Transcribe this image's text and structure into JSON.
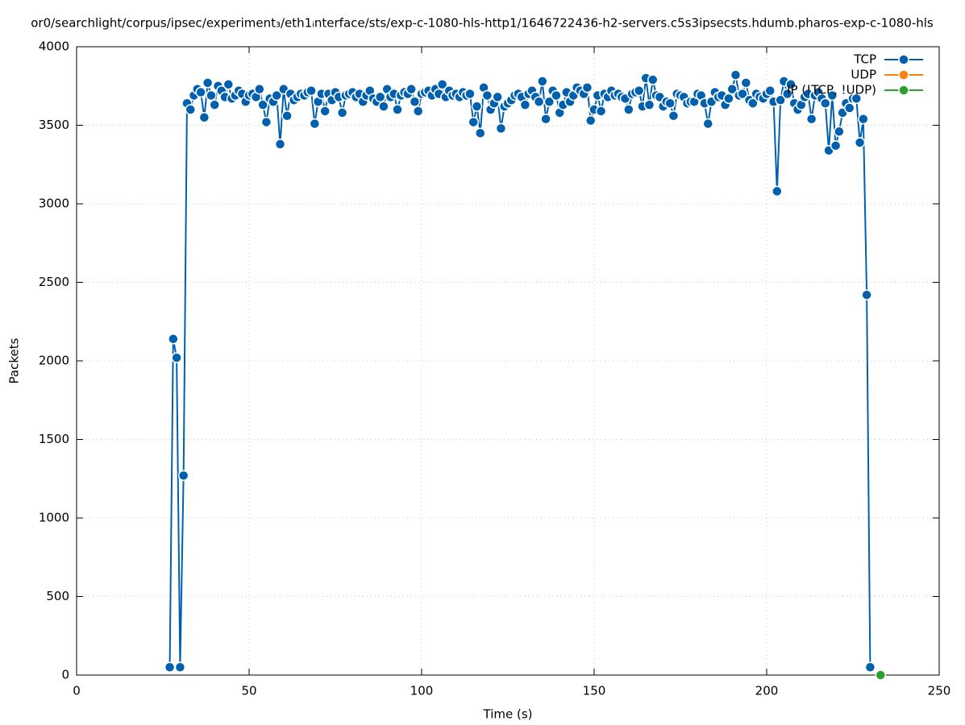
{
  "chart_data": {
    "type": "line",
    "title": "or0/searchlight/corpus/ipsec/experiment₃/eth1ᵢnterface/sts/exp-c-1080-hls-http1/1646722436-h2-servers.c5s3ipsecsts.hdumb.pharos-exp-c-1080-hls",
    "x_label": "Time (s)",
    "y_label": "Packets",
    "xlim": [
      0,
      250
    ],
    "xticks": [
      0,
      50,
      100,
      150,
      200,
      250
    ],
    "ylim": [
      0,
      4000
    ],
    "yticks": [
      0,
      500,
      1000,
      1500,
      2000,
      2500,
      3000,
      3500,
      4000
    ],
    "grid": true,
    "legend": "top-right",
    "series": [
      {
        "name": "TCP",
        "color": "#0060ad",
        "x": [
          27,
          28,
          29,
          30,
          31,
          32,
          33,
          34,
          35,
          36,
          37,
          38,
          39,
          40,
          41,
          42,
          43,
          44,
          45,
          46,
          47,
          48,
          49,
          50,
          51,
          52,
          53,
          54,
          55,
          56,
          57,
          58,
          59,
          60,
          61,
          62,
          63,
          64,
          65,
          66,
          67,
          68,
          69,
          70,
          71,
          72,
          73,
          74,
          75,
          76,
          77,
          78,
          79,
          80,
          81,
          82,
          83,
          84,
          85,
          86,
          87,
          88,
          89,
          90,
          91,
          92,
          93,
          94,
          95,
          96,
          97,
          98,
          99,
          100,
          101,
          102,
          103,
          104,
          105,
          106,
          107,
          108,
          109,
          110,
          111,
          112,
          113,
          114,
          115,
          116,
          117,
          118,
          119,
          120,
          121,
          122,
          123,
          124,
          125,
          126,
          127,
          128,
          129,
          130,
          131,
          132,
          133,
          134,
          135,
          136,
          137,
          138,
          139,
          140,
          141,
          142,
          143,
          144,
          145,
          146,
          147,
          148,
          149,
          150,
          151,
          152,
          153,
          154,
          155,
          156,
          157,
          158,
          159,
          160,
          161,
          162,
          163,
          164,
          165,
          166,
          167,
          168,
          169,
          170,
          171,
          172,
          173,
          174,
          175,
          176,
          177,
          178,
          179,
          180,
          181,
          182,
          183,
          184,
          185,
          186,
          187,
          188,
          189,
          190,
          191,
          192,
          193,
          194,
          195,
          196,
          197,
          198,
          199,
          200,
          201,
          202,
          203,
          204,
          205,
          206,
          207,
          208,
          209,
          210,
          211,
          212,
          213,
          214,
          215,
          216,
          217,
          218,
          219,
          220,
          221,
          222,
          223,
          224,
          225,
          226,
          227,
          228,
          229,
          230
        ],
        "values": [
          50,
          2140,
          2020,
          50,
          1270,
          3640,
          3600,
          3690,
          3730,
          3710,
          3550,
          3770,
          3690,
          3630,
          3750,
          3720,
          3680,
          3760,
          3670,
          3690,
          3720,
          3700,
          3650,
          3690,
          3700,
          3680,
          3730,
          3630,
          3520,
          3670,
          3650,
          3690,
          3380,
          3730,
          3560,
          3700,
          3660,
          3680,
          3700,
          3690,
          3710,
          3720,
          3510,
          3650,
          3700,
          3590,
          3700,
          3660,
          3710,
          3680,
          3580,
          3690,
          3700,
          3710,
          3680,
          3700,
          3650,
          3690,
          3720,
          3670,
          3650,
          3680,
          3620,
          3730,
          3680,
          3700,
          3600,
          3690,
          3710,
          3700,
          3730,
          3650,
          3590,
          3700,
          3710,
          3720,
          3690,
          3730,
          3700,
          3760,
          3680,
          3720,
          3690,
          3700,
          3680,
          3710,
          3690,
          3700,
          3520,
          3620,
          3450,
          3740,
          3690,
          3600,
          3640,
          3680,
          3480,
          3620,
          3640,
          3660,
          3690,
          3700,
          3680,
          3630,
          3700,
          3720,
          3680,
          3650,
          3780,
          3540,
          3650,
          3720,
          3690,
          3580,
          3630,
          3710,
          3650,
          3690,
          3740,
          3720,
          3700,
          3740,
          3530,
          3600,
          3690,
          3590,
          3700,
          3680,
          3720,
          3690,
          3700,
          3680,
          3670,
          3600,
          3700,
          3710,
          3720,
          3620,
          3800,
          3630,
          3790,
          3690,
          3680,
          3620,
          3650,
          3640,
          3560,
          3700,
          3690,
          3680,
          3640,
          3650,
          3650,
          3700,
          3690,
          3640,
          3510,
          3650,
          3710,
          3680,
          3690,
          3630,
          3670,
          3730,
          3820,
          3690,
          3700,
          3770,
          3660,
          3640,
          3700,
          3680,
          3670,
          3700,
          3720,
          3650,
          3080,
          3660,
          3780,
          3700,
          3760,
          3640,
          3600,
          3630,
          3680,
          3700,
          3540,
          3690,
          3710,
          3670,
          3640,
          3340,
          3690,
          3370,
          3460,
          3580,
          3640,
          3610,
          3670,
          3670,
          3390,
          3540,
          2420,
          50
        ]
      },
      {
        "name": "UDP",
        "color": "#ff7f0e",
        "x": [],
        "values": []
      },
      {
        "name": "IP (!TCP, !UDP)",
        "color": "#2ca02c",
        "x": [
          233
        ],
        "values": [
          0
        ]
      }
    ]
  }
}
